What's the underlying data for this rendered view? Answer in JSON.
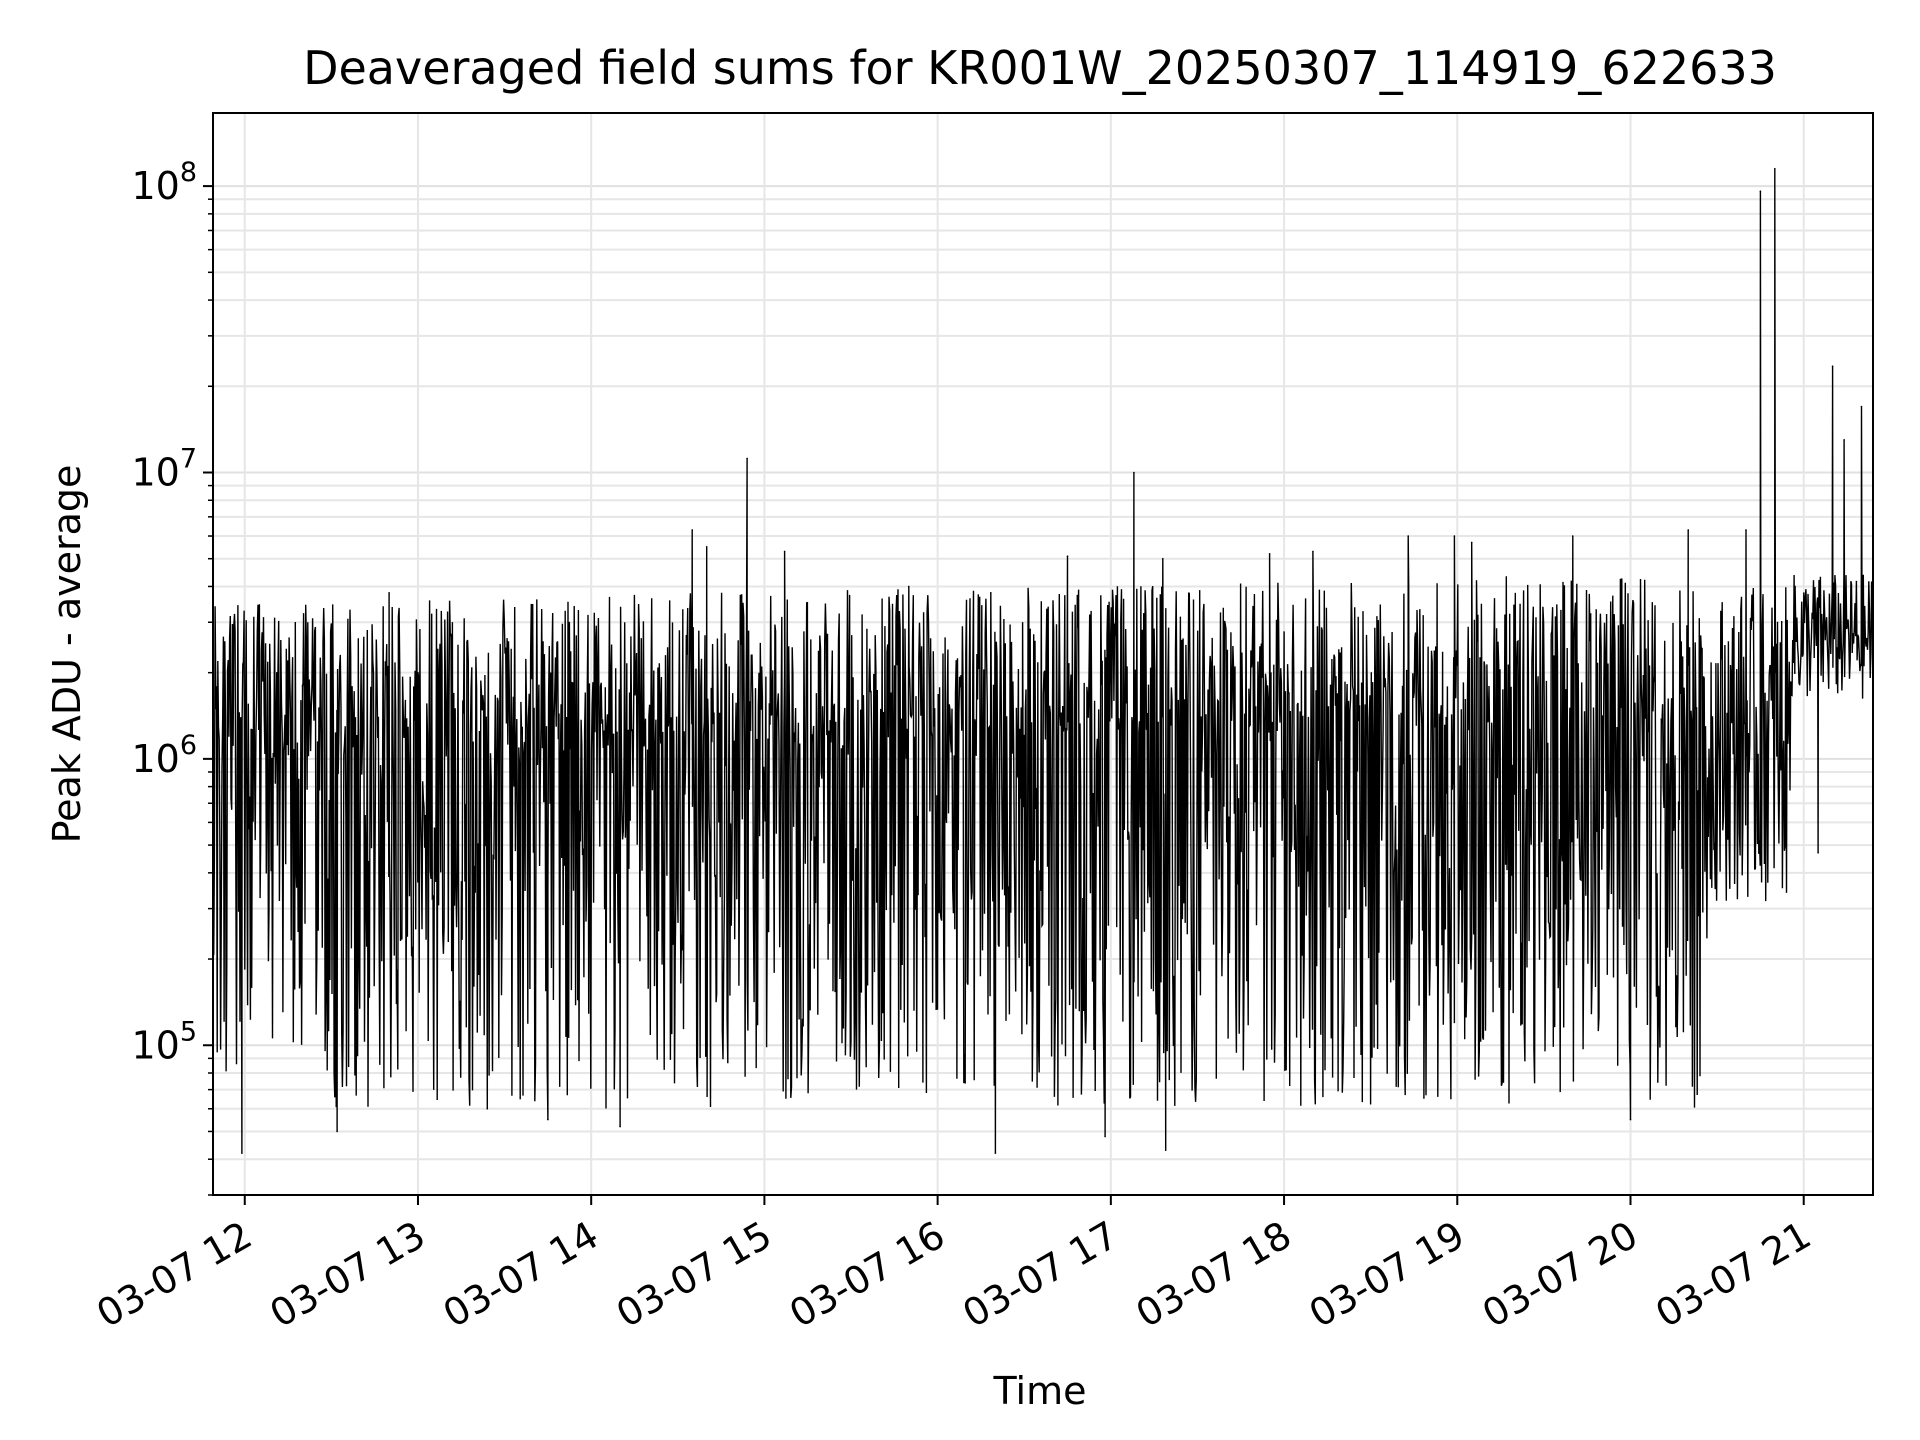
{
  "chart_data": {
    "type": "line",
    "title": "Deaveraged field sums for KR001W_20250307_114919_622633",
    "xlabel": "Time",
    "ylabel": "Peak ADU - average",
    "yscale": "log",
    "ylim": [
      30000,
      180000000
    ],
    "xlim": [
      "2025-03-07 11:49",
      "2025-03-07 21:24"
    ],
    "grid": true,
    "legend": "none",
    "x_ticks": [
      {
        "time": "2025-03-07 12:00",
        "label": "03-07 12"
      },
      {
        "time": "2025-03-07 13:00",
        "label": "03-07 13"
      },
      {
        "time": "2025-03-07 14:00",
        "label": "03-07 14"
      },
      {
        "time": "2025-03-07 15:00",
        "label": "03-07 15"
      },
      {
        "time": "2025-03-07 16:00",
        "label": "03-07 16"
      },
      {
        "time": "2025-03-07 17:00",
        "label": "03-07 17"
      },
      {
        "time": "2025-03-07 18:00",
        "label": "03-07 18"
      },
      {
        "time": "2025-03-07 19:00",
        "label": "03-07 19"
      },
      {
        "time": "2025-03-07 20:00",
        "label": "03-07 20"
      },
      {
        "time": "2025-03-07 21:00",
        "label": "03-07 21"
      }
    ],
    "y_ticks": [
      {
        "value": 100000,
        "base": "10",
        "exp": "5"
      },
      {
        "value": 1000000,
        "base": "10",
        "exp": "6"
      },
      {
        "value": 10000000,
        "base": "10",
        "exp": "7"
      },
      {
        "value": 100000000,
        "base": "10",
        "exp": "8"
      }
    ],
    "series": [
      {
        "color": "#000000",
        "typical_range": [
          60000,
          3500000
        ],
        "points": [
          [
            "2025-03-07 11:50",
            1500000
          ],
          [
            "2025-03-07 11:59",
            42000
          ],
          [
            "2025-03-07 12:20",
            1800000
          ],
          [
            "2025-03-07 12:32",
            50000
          ],
          [
            "2025-03-07 12:50",
            3800000
          ],
          [
            "2025-03-07 13:00",
            2000000
          ],
          [
            "2025-03-07 13:24",
            60000
          ],
          [
            "2025-03-07 13:45",
            55000
          ],
          [
            "2025-03-07 14:10",
            52000
          ],
          [
            "2025-03-07 14:35",
            6300000
          ],
          [
            "2025-03-07 14:40",
            5500000
          ],
          [
            "2025-03-07 14:54",
            11200000
          ],
          [
            "2025-03-07 15:07",
            5300000
          ],
          [
            "2025-03-07 15:50",
            4000000
          ],
          [
            "2025-03-07 16:20",
            42000
          ],
          [
            "2025-03-07 16:45",
            5100000
          ],
          [
            "2025-03-07 16:58",
            48000
          ],
          [
            "2025-03-07 17:08",
            10000000
          ],
          [
            "2025-03-07 17:18",
            5000000
          ],
          [
            "2025-03-07 17:19",
            43000
          ],
          [
            "2025-03-07 17:55",
            5200000
          ],
          [
            "2025-03-07 18:10",
            5300000
          ],
          [
            "2025-03-07 18:43",
            6000000
          ],
          [
            "2025-03-07 18:59",
            6000000
          ],
          [
            "2025-03-07 19:05",
            5700000
          ],
          [
            "2025-03-07 19:40",
            6000000
          ],
          [
            "2025-03-07 20:00",
            55000
          ],
          [
            "2025-03-07 20:20",
            6300000
          ],
          [
            "2025-03-07 20:40",
            6300000
          ],
          [
            "2025-03-07 20:45",
            96000000
          ],
          [
            "2025-03-07 20:50",
            115000000
          ],
          [
            "2025-03-07 20:57",
            4000000
          ],
          [
            "2025-03-07 21:05",
            470000
          ],
          [
            "2025-03-07 21:10",
            23500000
          ],
          [
            "2025-03-07 21:14",
            13000000
          ],
          [
            "2025-03-07 21:20",
            17000000
          ],
          [
            "2025-03-07 21:24",
            1300000
          ]
        ]
      }
    ]
  }
}
